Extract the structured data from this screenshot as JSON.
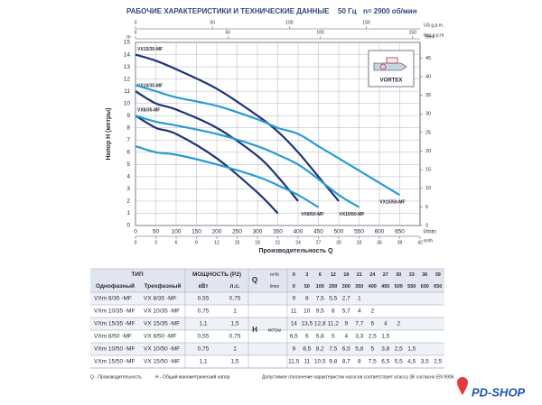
{
  "header": {
    "title": "РАБОЧИЕ ХАРАКТЕРИСТИКИ И ТЕХНИЧЕСКИЕ ДАННЫЕ",
    "freq": "50 Гц",
    "speed": "n= 2900 об/мин"
  },
  "chart_data": {
    "type": "line",
    "y_label": "Напор H (метры)",
    "x_label": "Производительность Q",
    "x_unit": "l/min",
    "x2_unit": "m³/h",
    "top_unit": "US g.p.m.",
    "top2_unit": "Imp g.p.m.",
    "y_unit": "m",
    "y2_unit": "feet",
    "icon_label": "VORTEX",
    "x": [
      0,
      50,
      100,
      200,
      300,
      350,
      400,
      450,
      500,
      550,
      600,
      650
    ],
    "series": [
      {
        "name": "VX15/35-MF",
        "color": "#1f3474",
        "values": [
          14,
          13.5,
          12.8,
          11.2,
          9,
          7.7,
          6,
          4,
          2,
          null,
          null,
          null
        ]
      },
      {
        "name": "VX10/35-MF",
        "color": "#1f3474",
        "values": [
          11,
          10,
          9.5,
          8,
          5.7,
          4,
          2,
          null,
          null,
          null,
          null,
          null
        ]
      },
      {
        "name": "VX8/35-MF",
        "color": "#1f3474",
        "values": [
          9,
          8,
          7.5,
          5.5,
          2.7,
          1,
          null,
          null,
          null,
          null,
          null,
          null
        ]
      },
      {
        "name": "VX8/50-MF",
        "color": "#2a9bd3",
        "values": [
          6.5,
          6,
          5.8,
          5,
          4,
          3.3,
          2.5,
          1.5,
          null,
          null,
          null,
          null
        ]
      },
      {
        "name": "VX10/50-MF",
        "color": "#2a9bd3",
        "values": [
          9,
          8.5,
          8.2,
          7.5,
          6.5,
          5.8,
          5,
          3.8,
          2.5,
          1.5,
          null,
          null
        ]
      },
      {
        "name": "VX15/50-MF",
        "color": "#2a9bd3",
        "values": [
          11.5,
          11,
          10.5,
          9.8,
          8.7,
          8,
          7.5,
          6.5,
          5.5,
          4.5,
          3.5,
          2.5
        ]
      }
    ],
    "xlim": [
      0,
      700
    ],
    "xticks": [
      0,
      50,
      100,
      150,
      200,
      250,
      300,
      350,
      400,
      450,
      500,
      550,
      600,
      650
    ],
    "x2lim": [
      0,
      42
    ],
    "x2ticks": [
      0,
      3,
      6,
      9,
      12,
      15,
      18,
      21,
      24,
      27,
      30,
      33,
      36,
      39,
      42
    ],
    "toplim": [
      0,
      184.9
    ],
    "topticks": [
      0,
      50,
      100,
      150
    ],
    "top2lim": [
      0,
      154
    ],
    "top2ticks": [
      0,
      50,
      100,
      150
    ],
    "ylim": [
      0,
      15
    ],
    "yticks": [
      0,
      1,
      2,
      3,
      4,
      5,
      6,
      7,
      8,
      9,
      10,
      11,
      12,
      13,
      14,
      15
    ],
    "y2lim": [
      0,
      49.2
    ],
    "y2ticks": [
      0,
      5,
      10,
      15,
      20,
      25,
      30,
      35,
      40,
      45
    ],
    "grid": true
  },
  "table": {
    "type_header": "ТИП",
    "power_header": "МОЩНОСТЬ (P2)",
    "col_headers": [
      "Однофазный",
      "Трехфазный",
      "кВт",
      "л.с."
    ],
    "q_label": "Q",
    "q_units": [
      "m³/h",
      "l/min"
    ],
    "q_m3h": [
      "0",
      "3",
      "6",
      "12",
      "18",
      "21",
      "24",
      "27",
      "30",
      "33",
      "36",
      "39"
    ],
    "q_lmin": [
      "0",
      "50",
      "100",
      "200",
      "300",
      "350",
      "400",
      "450",
      "500",
      "550",
      "600",
      "650"
    ],
    "h_label": "H",
    "h_unit": "метры",
    "rows": [
      {
        "single": "VXm 8/35 -MF",
        "three": "VX 8/35 -MF",
        "kw": "0,55",
        "hp": "0,75",
        "h": [
          "9",
          "8",
          "7,5",
          "5,5",
          "2,7",
          "1"
        ]
      },
      {
        "single": "VXm 10/35 -MF",
        "three": "VX 10/35 -MF",
        "kw": "0,75",
        "hp": "1",
        "h": [
          "11",
          "10",
          "9,5",
          "8",
          "5,7",
          "4",
          "2"
        ]
      },
      {
        "single": "VXm 15/35 -MF",
        "three": "VX 15/35 -MF",
        "kw": "1,1",
        "hp": "1,5",
        "h": [
          "14",
          "13,5",
          "12,8",
          "11,2",
          "9",
          "7,7",
          "6",
          "4",
          "2"
        ]
      },
      {
        "single": "VXm 8/50 -MF",
        "three": "VX 8/50 -MF",
        "kw": "0,55",
        "hp": "0,75",
        "h": [
          "6,5",
          "6",
          "5,8",
          "5",
          "4",
          "3,3",
          "2,5",
          "1,5"
        ]
      },
      {
        "single": "VXm 10/50 -MF",
        "three": "VX 10/50 -MF",
        "kw": "0,75",
        "hp": "1",
        "h": [
          "9",
          "8,5",
          "8,2",
          "7,5",
          "6,5",
          "5,8",
          "5",
          "3,8",
          "2,5",
          "1,5"
        ]
      },
      {
        "single": "VXm 15/50 -MF",
        "three": "VX 15/50 -MF",
        "kw": "1,1",
        "hp": "1,5",
        "h": [
          "11,5",
          "11",
          "10,5",
          "9,8",
          "8,7",
          "8",
          "7,5",
          "6,5",
          "5,5",
          "4,5",
          "3,5",
          "2,5"
        ]
      }
    ]
  },
  "footer": {
    "legend_q": "Q - Производительность",
    "legend_h": "H - Общий манометрический напор",
    "note": "Допустимое отклонение характеристик насосов соответствует классу 3В согласно EN 9906"
  },
  "logo": "PD-SHOP"
}
